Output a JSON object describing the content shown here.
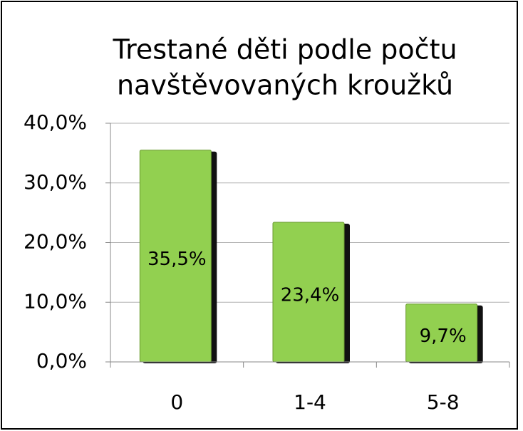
{
  "chart_data": {
    "type": "bar",
    "title": [
      "Trestané děti podle počtu",
      "navštěvovaných kroužků"
    ],
    "categories": [
      "0",
      "1-4",
      "5-8"
    ],
    "values": [
      35.5,
      23.4,
      9.7
    ],
    "value_labels": [
      "35,5%",
      "23,4%",
      "9,7%"
    ],
    "color": "#92d050",
    "ylim": [
      0,
      40
    ],
    "yticks": [
      {
        "value": 0,
        "label": "0,0%"
      },
      {
        "value": 10,
        "label": "10,0%"
      },
      {
        "value": 20,
        "label": "20,0%"
      },
      {
        "value": 30,
        "label": "30,0%"
      },
      {
        "value": 40,
        "label": "40,0%"
      }
    ],
    "grid": true
  }
}
